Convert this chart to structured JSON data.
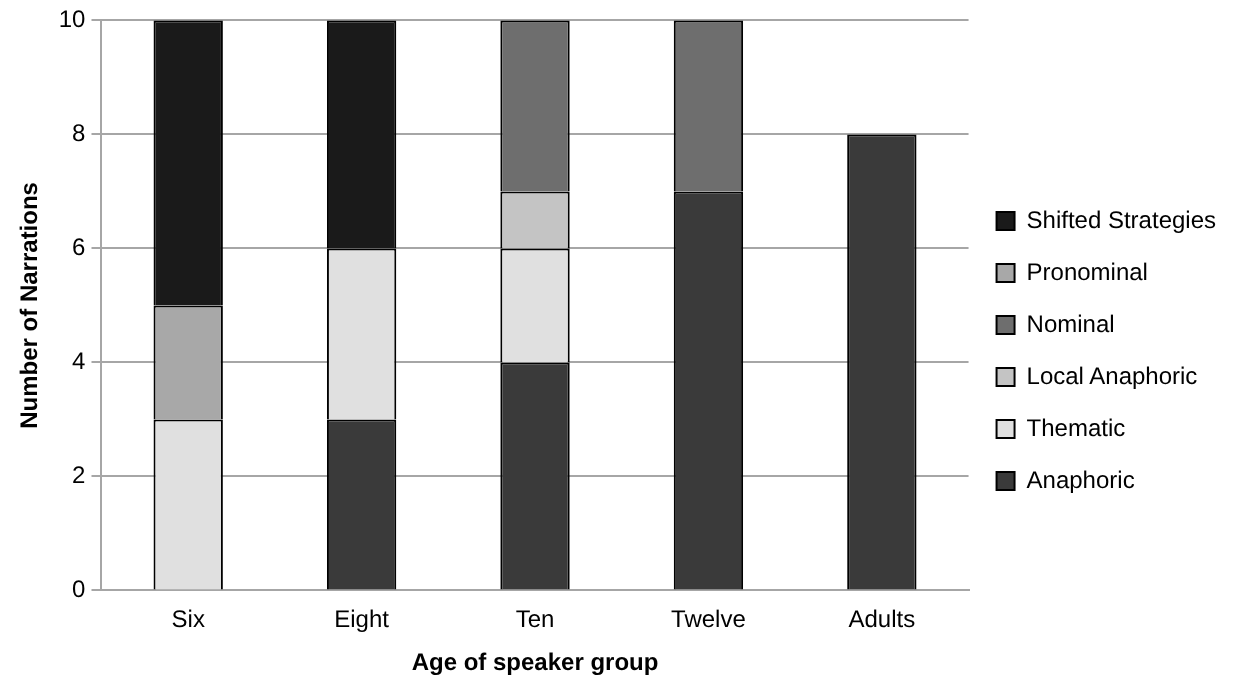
{
  "chart_data": {
    "type": "bar",
    "stacked": true,
    "xlabel": "Age of speaker group",
    "ylabel": "Number of Narrations",
    "categories": [
      "Six",
      "Eight",
      "Ten",
      "Twelve",
      "Adults"
    ],
    "series": [
      {
        "name": "Anaphoric",
        "color": "#3a3a3a",
        "values": [
          0,
          3,
          4,
          7,
          8
        ]
      },
      {
        "name": "Thematic",
        "color": "#e0e0e0",
        "values": [
          3,
          3,
          2,
          0,
          0
        ]
      },
      {
        "name": "Local Anaphoric",
        "color": "#c4c4c4",
        "values": [
          0,
          0,
          1,
          0,
          0
        ]
      },
      {
        "name": "Nominal",
        "color": "#6e6e6e",
        "values": [
          0,
          0,
          3,
          3,
          0
        ]
      },
      {
        "name": "Pronominal",
        "color": "#a8a8a8",
        "values": [
          2,
          0,
          0,
          0,
          0
        ]
      },
      {
        "name": "Shifted Strategies",
        "color": "#1a1a1a",
        "values": [
          5,
          4,
          0,
          0,
          0
        ]
      }
    ],
    "ylim": [
      0,
      10
    ],
    "yticks": [
      0,
      2,
      4,
      6,
      8,
      10
    ],
    "grid": "y",
    "legend": "right"
  }
}
